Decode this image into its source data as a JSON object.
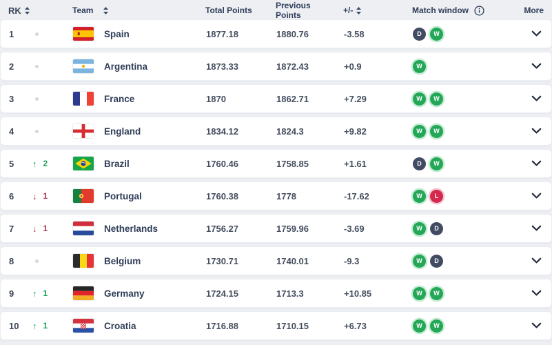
{
  "table": {
    "columns": {
      "rk": "RK",
      "team": "Team",
      "total_points": "Total Points",
      "previous_points": "Previous Points",
      "delta": "+/-",
      "match_window": "Match window",
      "more": "More"
    },
    "rows": [
      {
        "rank": "1",
        "change": {
          "dir": "none",
          "amount": ""
        },
        "team": "Spain",
        "flag": "es",
        "total": "1877.18",
        "prev": "1880.76",
        "delta": "-3.58",
        "match_window": [
          "D",
          "W"
        ]
      },
      {
        "rank": "2",
        "change": {
          "dir": "none",
          "amount": ""
        },
        "team": "Argentina",
        "flag": "ar",
        "total": "1873.33",
        "prev": "1872.43",
        "delta": "+0.9",
        "match_window": [
          "W"
        ]
      },
      {
        "rank": "3",
        "change": {
          "dir": "none",
          "amount": ""
        },
        "team": "France",
        "flag": "fr",
        "total": "1870",
        "prev": "1862.71",
        "delta": "+7.29",
        "match_window": [
          "W",
          "W"
        ]
      },
      {
        "rank": "4",
        "change": {
          "dir": "none",
          "amount": ""
        },
        "team": "England",
        "flag": "en",
        "total": "1834.12",
        "prev": "1824.3",
        "delta": "+9.82",
        "match_window": [
          "W",
          "W"
        ]
      },
      {
        "rank": "5",
        "change": {
          "dir": "up",
          "amount": "2"
        },
        "team": "Brazil",
        "flag": "br",
        "total": "1760.46",
        "prev": "1758.85",
        "delta": "+1.61",
        "match_window": [
          "D",
          "W"
        ]
      },
      {
        "rank": "6",
        "change": {
          "dir": "down",
          "amount": "1"
        },
        "team": "Portugal",
        "flag": "pt",
        "total": "1760.38",
        "prev": "1778",
        "delta": "-17.62",
        "match_window": [
          "W",
          "L"
        ]
      },
      {
        "rank": "7",
        "change": {
          "dir": "down",
          "amount": "1"
        },
        "team": "Netherlands",
        "flag": "nl",
        "total": "1756.27",
        "prev": "1759.96",
        "delta": "-3.69",
        "match_window": [
          "W",
          "D"
        ]
      },
      {
        "rank": "8",
        "change": {
          "dir": "none",
          "amount": ""
        },
        "team": "Belgium",
        "flag": "be",
        "total": "1730.71",
        "prev": "1740.01",
        "delta": "-9.3",
        "match_window": [
          "W",
          "D"
        ]
      },
      {
        "rank": "9",
        "change": {
          "dir": "up",
          "amount": "1"
        },
        "team": "Germany",
        "flag": "de",
        "total": "1724.15",
        "prev": "1713.3",
        "delta": "+10.85",
        "match_window": [
          "W",
          "W"
        ]
      },
      {
        "rank": "10",
        "change": {
          "dir": "up",
          "amount": "1"
        },
        "team": "Croatia",
        "flag": "hr",
        "total": "1716.88",
        "prev": "1710.15",
        "delta": "+6.73",
        "match_window": [
          "W",
          "W"
        ]
      }
    ]
  },
  "colors": {
    "win": "#24a757",
    "draw": "#414b61",
    "loss": "#d42a4e",
    "rank_up": "#18a254",
    "rank_down": "#ab3350"
  },
  "icons": {
    "sort": "sort-arrows",
    "info": "info-circle",
    "expand": "chevron-down"
  }
}
